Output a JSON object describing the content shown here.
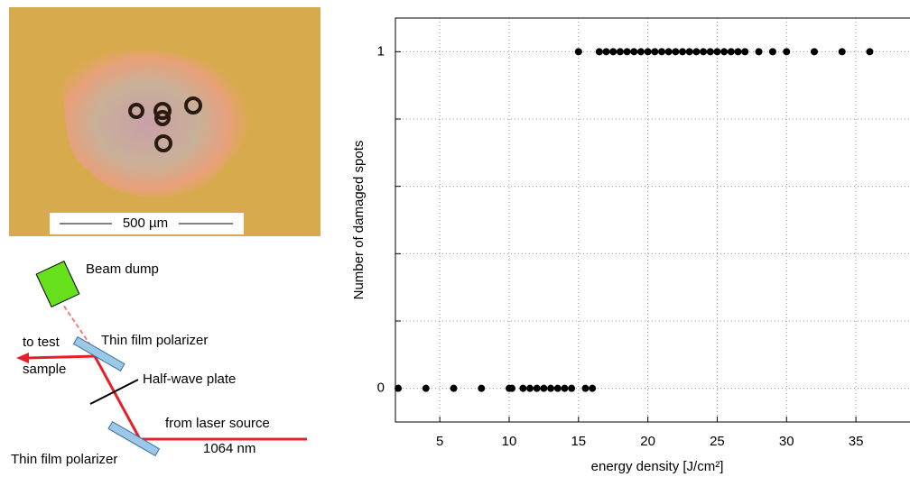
{
  "micrograph": {
    "scale_label": "500 µm"
  },
  "setup": {
    "beam_dump": "Beam dump",
    "to_test": "to test",
    "sample": "sample",
    "polarizer_top": "Thin film polarizer",
    "half_wave": "Half-wave plate",
    "from_laser": "from laser source",
    "wavelength": "1064 nm",
    "polarizer_bottom": "Thin film polarizer"
  },
  "chart_data": {
    "type": "scatter",
    "x": [
      2,
      4,
      6,
      8,
      10,
      10.2,
      11,
      11.5,
      12,
      12.5,
      13,
      13.5,
      14,
      14.5,
      15.5,
      16,
      15,
      16.5,
      17,
      17.5,
      18,
      18.5,
      19,
      19.5,
      20,
      20.5,
      21,
      21.5,
      22,
      22.5,
      23,
      23.5,
      24,
      24.5,
      25,
      25.5,
      26,
      26.5,
      27,
      28,
      29,
      30,
      32,
      34,
      36
    ],
    "values": [
      0,
      0,
      0,
      0,
      0,
      0,
      0,
      0,
      0,
      0,
      0,
      0,
      0,
      0,
      0,
      0,
      1,
      1,
      1,
      1,
      1,
      1,
      1,
      1,
      1,
      1,
      1,
      1,
      1,
      1,
      1,
      1,
      1,
      1,
      1,
      1,
      1,
      1,
      1,
      1,
      1,
      1,
      1,
      1,
      1
    ],
    "color": "#000000",
    "xlabel": "energy density [J/cm²]",
    "ylabel": "Number of damaged spots",
    "xlim": [
      1.8,
      38.9
    ],
    "ylim": [
      -0.1,
      1.1
    ],
    "xticks": [
      5,
      10,
      15,
      20,
      25,
      30,
      35
    ],
    "yticks": [
      0,
      1
    ],
    "yminor": [
      0.2,
      0.4,
      0.6,
      0.8
    ],
    "grid": true
  }
}
